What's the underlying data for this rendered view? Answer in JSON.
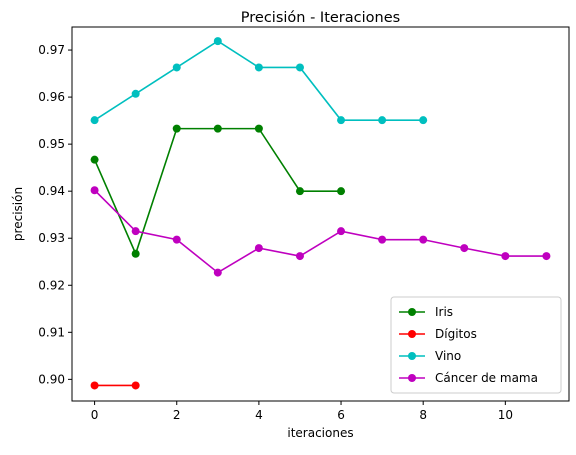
{
  "chart_data": {
    "type": "line",
    "title": "Precisión - Iteraciones",
    "xlabel": "iteraciones",
    "ylabel": "precisión",
    "xlim": [
      -0.55,
      11.55
    ],
    "ylim": [
      0.8954,
      0.9749
    ],
    "x_ticks": [
      0,
      2,
      4,
      6,
      8,
      10
    ],
    "y_ticks": [
      0.9,
      0.91,
      0.92,
      0.93,
      0.94,
      0.95,
      0.96,
      0.97
    ],
    "grid": false,
    "legend_position": "lower-right",
    "series": [
      {
        "name": "Iris",
        "color": "#008000",
        "x": [
          0,
          1,
          2,
          3,
          4,
          5,
          6
        ],
        "values": [
          0.9467,
          0.9267,
          0.9533,
          0.9533,
          0.9533,
          0.94,
          0.94
        ]
      },
      {
        "name": "Dígitos",
        "color": "#ff0000",
        "x": [
          0,
          1
        ],
        "values": [
          0.8987,
          0.8987
        ]
      },
      {
        "name": "Vino",
        "color": "#00bfbf",
        "x": [
          0,
          1,
          2,
          3,
          4,
          5,
          6,
          7,
          8
        ],
        "values": [
          0.9551,
          0.9607,
          0.9663,
          0.9719,
          0.9663,
          0.9663,
          0.9551,
          0.9551,
          0.9551
        ]
      },
      {
        "name": "Cáncer de mama",
        "color": "#bf00bf",
        "x": [
          0,
          1,
          2,
          3,
          4,
          5,
          6,
          7,
          8,
          9,
          10,
          11
        ],
        "values": [
          0.9402,
          0.9315,
          0.9297,
          0.9227,
          0.9279,
          0.9262,
          0.9315,
          0.9297,
          0.9297,
          0.9279,
          0.9262,
          0.9262
        ]
      }
    ]
  }
}
